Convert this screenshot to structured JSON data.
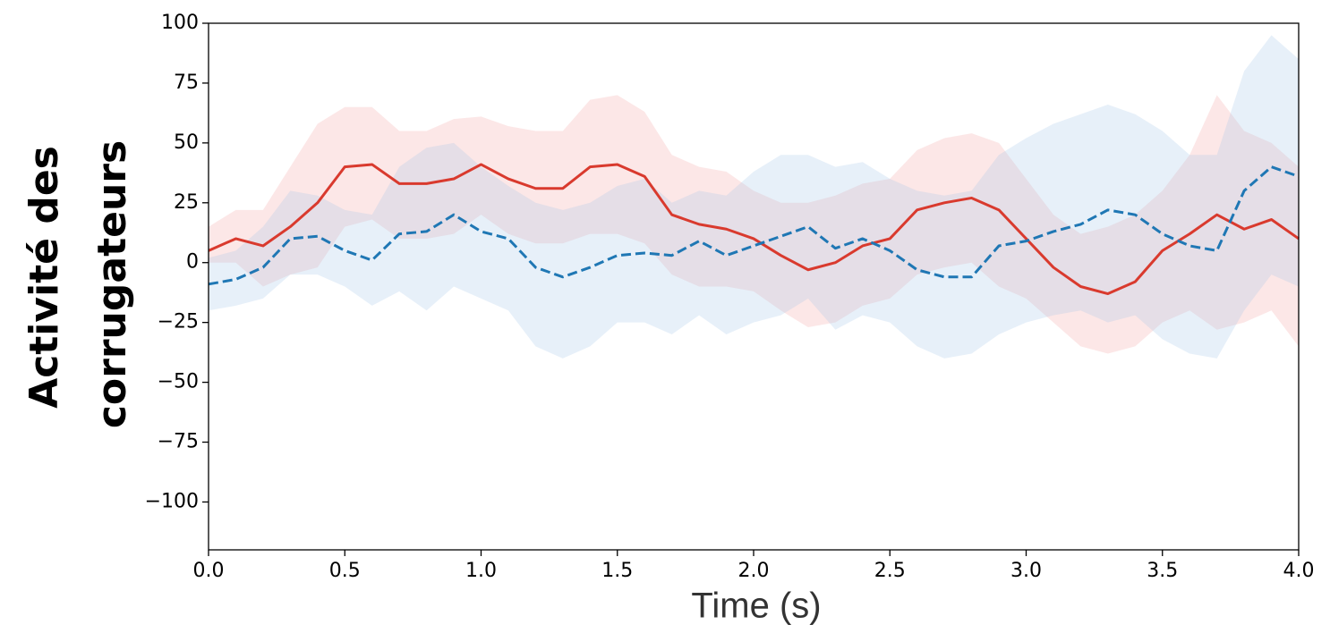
{
  "chart_data": {
    "type": "line",
    "xlabel": "Time (s)",
    "ylabel": [
      "Activité des",
      "corrugateurs"
    ],
    "x": [
      0,
      0.1,
      0.2,
      0.3,
      0.4,
      0.5,
      0.6,
      0.7,
      0.8,
      0.9,
      1.0,
      1.1,
      1.2,
      1.3,
      1.4,
      1.5,
      1.6,
      1.7,
      1.8,
      1.9,
      2.0,
      2.1,
      2.2,
      2.3,
      2.4,
      2.5,
      2.6,
      2.7,
      2.8,
      2.9,
      3.0,
      3.1,
      3.2,
      3.3,
      3.4,
      3.5,
      3.6,
      3.7,
      3.8,
      3.9,
      4.0
    ],
    "series": [
      {
        "color": "#d93a2e",
        "dash": false,
        "band_color": "#f4a0a0",
        "values": [
          5,
          10,
          7,
          15,
          25,
          40,
          41,
          33,
          33,
          35,
          41,
          35,
          31,
          31,
          40,
          41,
          36,
          20,
          16,
          14,
          10,
          3,
          -3,
          0,
          7,
          10,
          22,
          25,
          27,
          22,
          10,
          -2,
          -10,
          -13,
          -8,
          5,
          12,
          20,
          14,
          18,
          10
        ],
        "band_upper": [
          15,
          22,
          22,
          40,
          58,
          65,
          65,
          55,
          55,
          60,
          61,
          57,
          55,
          55,
          68,
          70,
          63,
          45,
          40,
          38,
          30,
          25,
          25,
          28,
          33,
          35,
          47,
          52,
          54,
          50,
          35,
          20,
          12,
          15,
          20,
          30,
          45,
          70,
          55,
          50,
          40
        ],
        "band_lower": [
          0,
          0,
          -10,
          -5,
          -2,
          15,
          18,
          10,
          10,
          12,
          20,
          12,
          8,
          8,
          12,
          12,
          8,
          -5,
          -10,
          -10,
          -12,
          -20,
          -27,
          -25,
          -18,
          -15,
          -5,
          -2,
          0,
          -10,
          -15,
          -25,
          -35,
          -38,
          -35,
          -25,
          -20,
          -28,
          -25,
          -20,
          -35
        ]
      },
      {
        "color": "#1f77b4",
        "dash": true,
        "band_color": "#a0c3e6",
        "values": [
          -9,
          -7,
          -2,
          10,
          11,
          5,
          1,
          12,
          13,
          20,
          13,
          10,
          -2,
          -6,
          -2,
          3,
          4,
          3,
          9,
          3,
          7,
          11,
          15,
          6,
          10,
          5,
          -3,
          -6,
          -6,
          7,
          9,
          13,
          16,
          22,
          20,
          12,
          7,
          5,
          30,
          40,
          36
        ],
        "band_upper": [
          2,
          5,
          15,
          30,
          28,
          22,
          20,
          40,
          48,
          50,
          40,
          32,
          25,
          22,
          25,
          32,
          35,
          25,
          30,
          28,
          38,
          45,
          45,
          40,
          42,
          35,
          30,
          28,
          30,
          45,
          52,
          58,
          62,
          66,
          62,
          55,
          45,
          45,
          80,
          95,
          85
        ],
        "band_lower": [
          -20,
          -18,
          -15,
          -5,
          -5,
          -10,
          -18,
          -12,
          -20,
          -10,
          -15,
          -20,
          -35,
          -40,
          -35,
          -25,
          -25,
          -30,
          -22,
          -30,
          -25,
          -22,
          -15,
          -28,
          -22,
          -25,
          -35,
          -40,
          -38,
          -30,
          -25,
          -22,
          -20,
          -25,
          -22,
          -32,
          -38,
          -40,
          -20,
          -5,
          -10
        ]
      }
    ],
    "xlim": [
      0,
      4
    ],
    "xticks": [
      {
        "value": 0,
        "label": "0.0"
      },
      {
        "value": 0.5,
        "label": "0.5"
      },
      {
        "value": 1,
        "label": "1.0"
      },
      {
        "value": 1.5,
        "label": "1.5"
      },
      {
        "value": 2,
        "label": "2.0"
      },
      {
        "value": 2.5,
        "label": "2.5"
      },
      {
        "value": 3,
        "label": "3.0"
      },
      {
        "value": 3.5,
        "label": "3.5"
      },
      {
        "value": 4,
        "label": "4.0"
      }
    ],
    "ylim": [
      -120,
      100
    ],
    "yticks": [
      {
        "value": -100,
        "label": "−100"
      },
      {
        "value": -75,
        "label": "−75"
      },
      {
        "value": -50,
        "label": "−50"
      },
      {
        "value": -25,
        "label": "−25"
      },
      0,
      25,
      50,
      75,
      100
    ]
  }
}
